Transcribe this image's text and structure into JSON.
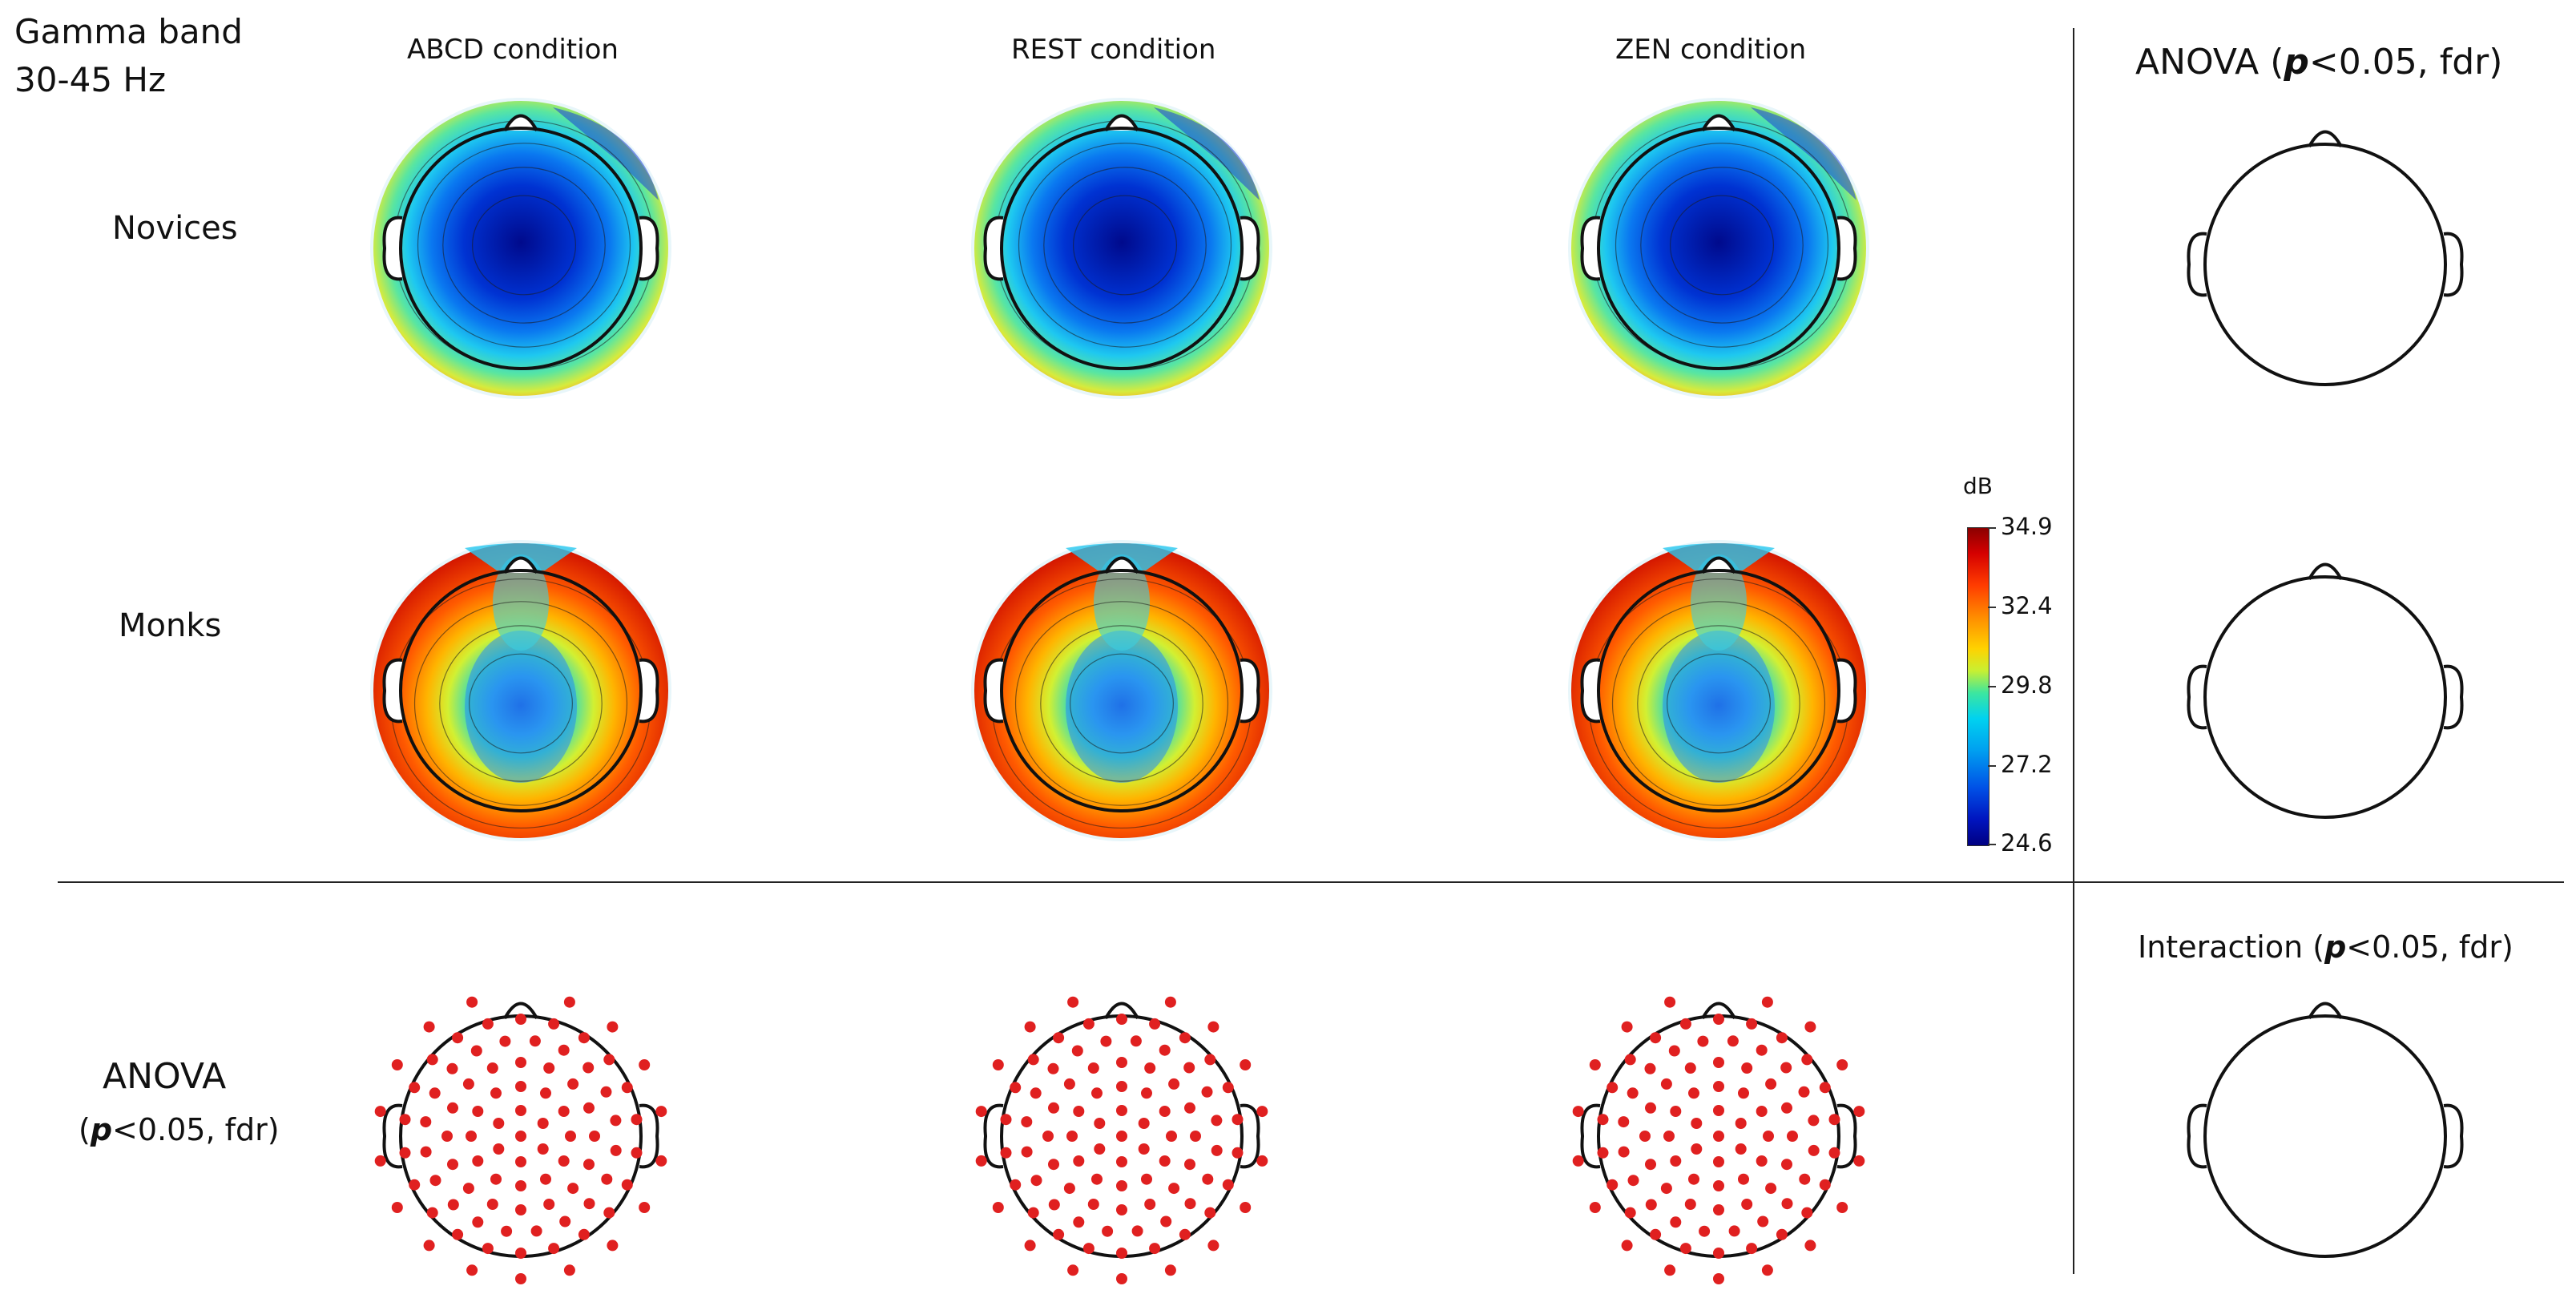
{
  "band_title": "Gamma band\n30-45 Hz",
  "conditions": [
    "ABCD condition",
    "REST condition",
    "ZEN condition"
  ],
  "rows": {
    "novices": "Novices",
    "monks": "Monks",
    "anova_line1": "ANOVA",
    "anova_line2_prefix": "(",
    "anova_line2_p": "p",
    "anova_line2_suffix": "<0.05, fdr)"
  },
  "right_panel": {
    "anova_prefix": "ANOVA (",
    "anova_p": "p",
    "anova_suffix": "<0.05, fdr)",
    "interaction_prefix": "Interaction (",
    "interaction_p": "p",
    "interaction_suffix": "<0.05, fdr)"
  },
  "colorbar": {
    "unit": "dB",
    "ticks": [
      "34.9",
      "32.4",
      "29.8",
      "27.2",
      "24.6"
    ],
    "max": 34.9,
    "min": 24.6,
    "colors": [
      "#8b0000",
      "#ff3c00",
      "#ffd200",
      "#3ce6a0",
      "#00a0f0",
      "#0014be",
      "#000082"
    ]
  },
  "maps": {
    "novices": [
      "ABCD",
      "REST",
      "ZEN"
    ],
    "monks": [
      "ABCD",
      "REST",
      "ZEN"
    ]
  },
  "marker_color": "#e02020"
}
